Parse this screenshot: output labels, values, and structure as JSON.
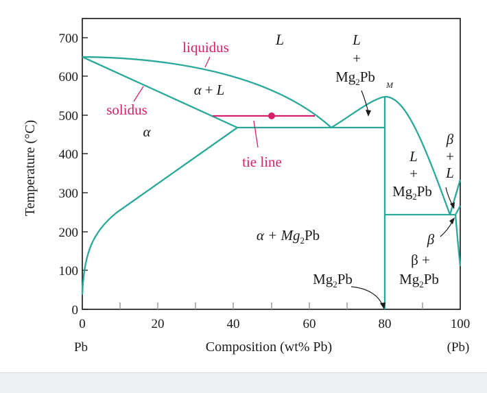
{
  "colors": {
    "phase_line": "#2aa898",
    "annotation": "#d61f69",
    "axis": "#000000",
    "text": "#1a1a1a"
  },
  "axes": {
    "ylabel": "Temperature (°C)",
    "xlabel": "Composition (wt% Pb)",
    "xleft_label": "Pb",
    "xright_label": "(Pb)",
    "yticks": [
      "0",
      "100",
      "200",
      "300",
      "400",
      "500",
      "600",
      "700"
    ],
    "xticks": [
      "0",
      "20",
      "40",
      "60",
      "80",
      "100"
    ],
    "xlim": [
      0,
      100
    ],
    "ylim": [
      0,
      720
    ]
  },
  "labels": {
    "liquidus": "liquidus",
    "solidus": "solidus",
    "tie_line": "tie line",
    "L": "L",
    "alpha_L_a": "α",
    "alpha_L_b": "+",
    "alpha_L_c": "L",
    "alpha": "α",
    "L_Mg2Pb_top": {
      "l": "L",
      "plus": "+",
      "mg": "Mg",
      "sub": "2",
      "pb": "Pb",
      "m": "M"
    },
    "L_Mg2Pb_mid": {
      "l": "L",
      "plus": "+",
      "mg": "Mg",
      "sub": "2",
      "pb": "Pb"
    },
    "beta_L": {
      "b": "β",
      "plus": "+",
      "l": "L"
    },
    "alpha_Mg2Pb": {
      "a": "α + Mg",
      "sub": "2",
      "pb": "Pb"
    },
    "beta_label": "β",
    "beta_Mg2Pb": {
      "b": "β +",
      "mg": "Mg",
      "sub": "2",
      "pb": "Pb"
    },
    "Mg2Pb_line": {
      "mg": "Mg",
      "sub": "2",
      "pb": "Pb"
    }
  }
}
